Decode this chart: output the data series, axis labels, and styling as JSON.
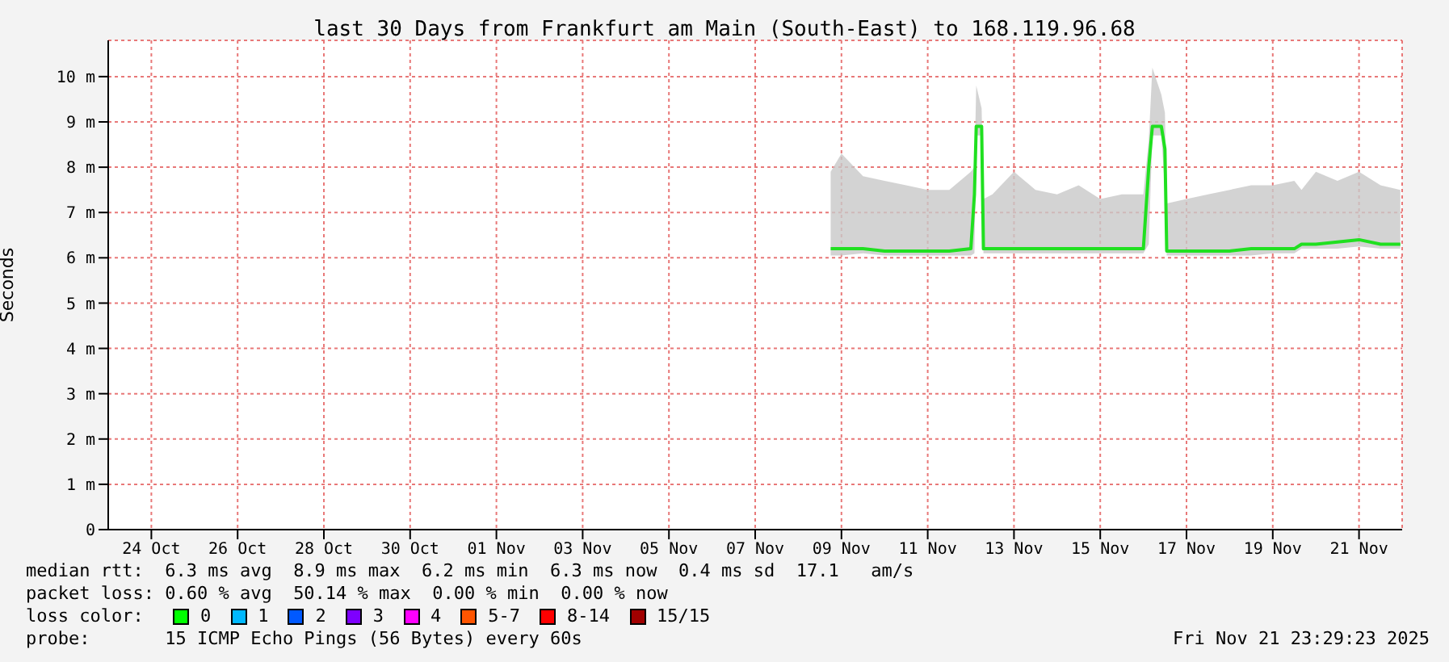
{
  "chart_data": {
    "type": "line",
    "title": "last 30 Days from Frankfurt am Main (South-East) to 168.119.96.68",
    "ylabel": "Seconds",
    "xlim": [
      "2025-10-23T00:00",
      "2025-11-22T00:00"
    ],
    "xticks": [
      {
        "value": "2025-10-24",
        "label": "24 Oct"
      },
      {
        "value": "2025-10-26",
        "label": "26 Oct"
      },
      {
        "value": "2025-10-28",
        "label": "28 Oct"
      },
      {
        "value": "2025-10-30",
        "label": "30 Oct"
      },
      {
        "value": "2025-11-01",
        "label": "01 Nov"
      },
      {
        "value": "2025-11-03",
        "label": "03 Nov"
      },
      {
        "value": "2025-11-05",
        "label": "05 Nov"
      },
      {
        "value": "2025-11-07",
        "label": "07 Nov"
      },
      {
        "value": "2025-11-09",
        "label": "09 Nov"
      },
      {
        "value": "2025-11-11",
        "label": "11 Nov"
      },
      {
        "value": "2025-11-13",
        "label": "13 Nov"
      },
      {
        "value": "2025-11-15",
        "label": "15 Nov"
      },
      {
        "value": "2025-11-17",
        "label": "17 Nov"
      },
      {
        "value": "2025-11-19",
        "label": "19 Nov"
      },
      {
        "value": "2025-11-21",
        "label": "21 Nov"
      }
    ],
    "ylim": [
      0,
      10.8
    ],
    "yticks": [
      0,
      {
        "value": 1,
        "label": "1 m"
      },
      {
        "value": 2,
        "label": "2 m"
      },
      {
        "value": 3,
        "label": "3 m"
      },
      {
        "value": 4,
        "label": "4 m"
      },
      {
        "value": 5,
        "label": "5 m"
      },
      {
        "value": 6,
        "label": "6 m"
      },
      {
        "value": 7,
        "label": "7 m"
      },
      {
        "value": 8,
        "label": "8 m"
      },
      {
        "value": 9,
        "label": "9 m"
      },
      {
        "value": 10,
        "label": "10 m"
      }
    ],
    "grid": true,
    "legend": false,
    "marker": "none",
    "line_style": "solid",
    "x": [
      "2025-11-08T18:00",
      "2025-11-09T00:00",
      "2025-11-09T12:00",
      "2025-11-10T00:00",
      "2025-11-10T12:00",
      "2025-11-11T00:00",
      "2025-11-11T12:00",
      "2025-11-12T00:00",
      "2025-11-12T02:00",
      "2025-11-12T03:00",
      "2025-11-12T06:00",
      "2025-11-12T07:00",
      "2025-11-12T12:00",
      "2025-11-13T00:00",
      "2025-11-13T12:00",
      "2025-11-14T00:00",
      "2025-11-14T12:00",
      "2025-11-15T00:00",
      "2025-11-15T12:00",
      "2025-11-16T00:00",
      "2025-11-16T03:00",
      "2025-11-16T05:00",
      "2025-11-16T10:00",
      "2025-11-16T12:00",
      "2025-11-16T13:00",
      "2025-11-17T00:00",
      "2025-11-17T12:00",
      "2025-11-18T00:00",
      "2025-11-18T12:00",
      "2025-11-19T00:00",
      "2025-11-19T12:00",
      "2025-11-19T16:00",
      "2025-11-20T00:00",
      "2025-11-20T12:00",
      "2025-11-21T00:00",
      "2025-11-21T12:00",
      "2025-11-21T23:00"
    ],
    "series": [
      {
        "color": "#20e020",
        "values": [
          6.2,
          6.2,
          6.2,
          6.15,
          6.15,
          6.15,
          6.15,
          6.2,
          7.4,
          8.9,
          8.9,
          6.2,
          6.2,
          6.2,
          6.2,
          6.2,
          6.2,
          6.2,
          6.2,
          6.2,
          8.0,
          8.9,
          8.9,
          8.4,
          6.15,
          6.15,
          6.15,
          6.15,
          6.2,
          6.2,
          6.2,
          6.3,
          6.3,
          6.35,
          6.4,
          6.3,
          6.3
        ],
        "lower": [
          6.05,
          6.05,
          6.1,
          6.05,
          6.05,
          6.05,
          6.05,
          6.05,
          6.1,
          8.7,
          8.7,
          6.1,
          6.1,
          6.1,
          6.1,
          6.1,
          6.1,
          6.1,
          6.1,
          6.1,
          6.3,
          8.7,
          8.7,
          7.5,
          6.05,
          6.05,
          6.05,
          6.05,
          6.05,
          6.1,
          6.1,
          6.2,
          6.2,
          6.2,
          6.25,
          6.2,
          6.2
        ],
        "upper": [
          7.9,
          8.3,
          7.8,
          7.7,
          7.6,
          7.5,
          7.5,
          7.9,
          8.0,
          9.8,
          9.3,
          7.3,
          7.4,
          7.9,
          7.5,
          7.4,
          7.6,
          7.3,
          7.4,
          7.4,
          8.6,
          10.2,
          9.6,
          9.2,
          7.2,
          7.3,
          7.4,
          7.5,
          7.6,
          7.6,
          7.7,
          7.5,
          7.9,
          7.7,
          7.9,
          7.6,
          7.5
        ]
      }
    ],
    "annotations": [
      "median rtt:  6.3 ms avg  8.9 ms max  6.2 ms min  6.3 ms now  0.4 ms sd  17.1   am/s",
      "packet loss: 0.60 % avg  50.14 % max  0.00 % min  0.00 % now",
      "loss color:",
      "0",
      "1",
      "2",
      "3",
      "4",
      "5-7",
      "8-14",
      "15/15",
      "probe:       15 ICMP Echo Pings (56 Bytes) every 60s",
      "Fri Nov 21 23:29:23 2025"
    ]
  }
}
